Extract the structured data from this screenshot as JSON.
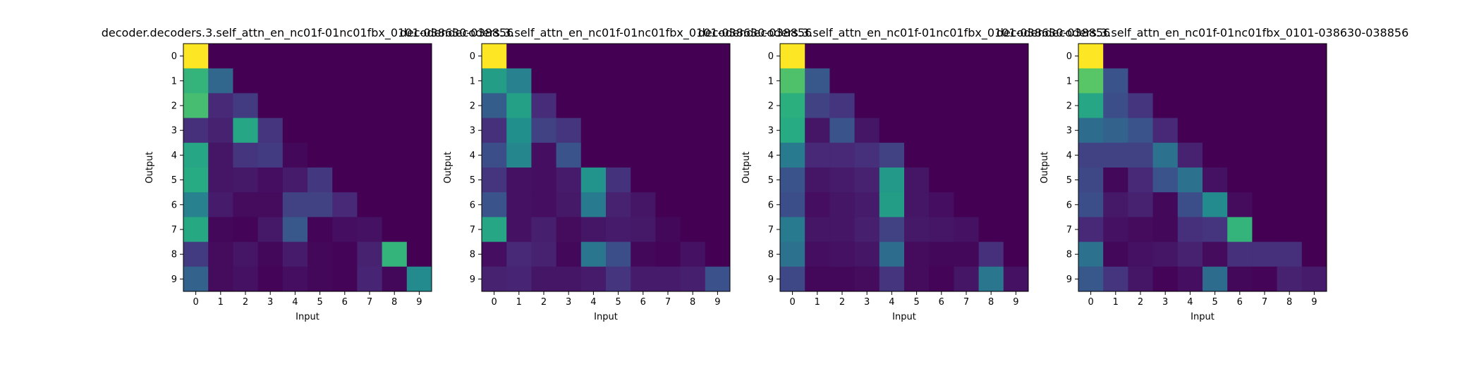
{
  "chart_data": [
    {
      "type": "heatmap",
      "title": "decoder.decoders.3.self_attn_en_nc01f-01nc01fbx_0101-038630-038856",
      "xlabel": "Input",
      "ylabel": "Output",
      "x_ticks": [
        "0",
        "1",
        "2",
        "3",
        "4",
        "5",
        "6",
        "7",
        "8",
        "9"
      ],
      "y_ticks": [
        "0",
        "1",
        "2",
        "3",
        "4",
        "5",
        "6",
        "7",
        "8",
        "9"
      ],
      "colormap": "viridis",
      "values": [
        [
          1.0,
          0,
          0,
          0,
          0,
          0,
          0,
          0,
          0,
          0
        ],
        [
          0.66,
          0.34,
          0,
          0,
          0,
          0,
          0,
          0,
          0,
          0
        ],
        [
          0.7,
          0.12,
          0.18,
          0,
          0,
          0,
          0,
          0,
          0,
          0
        ],
        [
          0.14,
          0.1,
          0.6,
          0.16,
          0,
          0,
          0,
          0,
          0,
          0
        ],
        [
          0.6,
          0.06,
          0.16,
          0.18,
          0.02,
          0,
          0,
          0,
          0,
          0
        ],
        [
          0.62,
          0.06,
          0.07,
          0.04,
          0.08,
          0.17,
          0,
          0,
          0,
          0
        ],
        [
          0.44,
          0.08,
          0.03,
          0.03,
          0.2,
          0.2,
          0.12,
          0,
          0,
          0
        ],
        [
          0.61,
          0.02,
          0.01,
          0.07,
          0.28,
          0.01,
          0.04,
          0.05,
          0,
          0
        ],
        [
          0.18,
          0.03,
          0.06,
          0.02,
          0.08,
          0.02,
          0.01,
          0.1,
          0.66,
          0
        ],
        [
          0.32,
          0.03,
          0.05,
          0.01,
          0.04,
          0.02,
          0.01,
          0.11,
          0.02,
          0.48
        ]
      ]
    },
    {
      "type": "heatmap",
      "title": "decoder.decoders.3.self_attn_en_nc01f-01nc01fbx_0101-038630-038856",
      "xlabel": "Input",
      "ylabel": "Output",
      "x_ticks": [
        "0",
        "1",
        "2",
        "3",
        "4",
        "5",
        "6",
        "7",
        "8",
        "9"
      ],
      "y_ticks": [
        "0",
        "1",
        "2",
        "3",
        "4",
        "5",
        "6",
        "7",
        "8",
        "9"
      ],
      "colormap": "viridis",
      "values": [
        [
          1.0,
          0,
          0,
          0,
          0,
          0,
          0,
          0,
          0,
          0
        ],
        [
          0.56,
          0.44,
          0,
          0,
          0,
          0,
          0,
          0,
          0,
          0
        ],
        [
          0.3,
          0.57,
          0.13,
          0,
          0,
          0,
          0,
          0,
          0,
          0
        ],
        [
          0.14,
          0.5,
          0.2,
          0.16,
          0,
          0,
          0,
          0,
          0,
          0
        ],
        [
          0.24,
          0.46,
          0.04,
          0.26,
          0,
          0,
          0,
          0,
          0,
          0
        ],
        [
          0.16,
          0.05,
          0.04,
          0.08,
          0.52,
          0.15,
          0,
          0,
          0,
          0
        ],
        [
          0.26,
          0.05,
          0.04,
          0.07,
          0.42,
          0.1,
          0.06,
          0,
          0,
          0
        ],
        [
          0.6,
          0.05,
          0.09,
          0.03,
          0.06,
          0.08,
          0.07,
          0.02,
          0,
          0
        ],
        [
          0.04,
          0.12,
          0.1,
          0.02,
          0.4,
          0.24,
          0.02,
          0.01,
          0.05,
          0
        ],
        [
          0.1,
          0.11,
          0.06,
          0.06,
          0.08,
          0.16,
          0.08,
          0.08,
          0.09,
          0.25
        ]
      ]
    },
    {
      "type": "heatmap",
      "title": "decoder.decoders.3.self_attn_en_nc01f-01nc01fbx_0101-038630-038856",
      "xlabel": "Input",
      "ylabel": "Output",
      "x_ticks": [
        "0",
        "1",
        "2",
        "3",
        "4",
        "5",
        "6",
        "7",
        "8",
        "9"
      ],
      "y_ticks": [
        "0",
        "1",
        "2",
        "3",
        "4",
        "5",
        "6",
        "7",
        "8",
        "9"
      ],
      "colormap": "viridis",
      "values": [
        [
          1.0,
          0,
          0,
          0,
          0,
          0,
          0,
          0,
          0,
          0
        ],
        [
          0.72,
          0.28,
          0,
          0,
          0,
          0,
          0,
          0,
          0,
          0
        ],
        [
          0.64,
          0.2,
          0.16,
          0,
          0,
          0,
          0,
          0,
          0,
          0
        ],
        [
          0.62,
          0.06,
          0.26,
          0.06,
          0,
          0,
          0,
          0,
          0,
          0
        ],
        [
          0.42,
          0.12,
          0.12,
          0.14,
          0.2,
          0,
          0,
          0,
          0,
          0
        ],
        [
          0.26,
          0.06,
          0.08,
          0.1,
          0.54,
          0.06,
          0,
          0,
          0,
          0
        ],
        [
          0.24,
          0.04,
          0.06,
          0.08,
          0.56,
          0.06,
          0.04,
          0,
          0,
          0
        ],
        [
          0.42,
          0.06,
          0.06,
          0.09,
          0.2,
          0.07,
          0.06,
          0.05,
          0,
          0
        ],
        [
          0.38,
          0.04,
          0.05,
          0.06,
          0.36,
          0.03,
          0.02,
          0.02,
          0.14,
          0
        ],
        [
          0.22,
          0.02,
          0.02,
          0.03,
          0.16,
          0.03,
          0.01,
          0.06,
          0.4,
          0.05
        ]
      ]
    },
    {
      "type": "heatmap",
      "title": "decoder.decoders.3.self_attn_en_nc01f-01nc01fbx_0101-038630-038856",
      "xlabel": "Input",
      "ylabel": "Output",
      "x_ticks": [
        "0",
        "1",
        "2",
        "3",
        "4",
        "5",
        "6",
        "7",
        "8",
        "9"
      ],
      "y_ticks": [
        "0",
        "1",
        "2",
        "3",
        "4",
        "5",
        "6",
        "7",
        "8",
        "9"
      ],
      "colormap": "viridis",
      "values": [
        [
          1.0,
          0,
          0,
          0,
          0,
          0,
          0,
          0,
          0,
          0
        ],
        [
          0.74,
          0.26,
          0,
          0,
          0,
          0,
          0,
          0,
          0,
          0
        ],
        [
          0.6,
          0.24,
          0.16,
          0,
          0,
          0,
          0,
          0,
          0,
          0
        ],
        [
          0.36,
          0.32,
          0.26,
          0.12,
          0,
          0,
          0,
          0,
          0,
          0
        ],
        [
          0.2,
          0.2,
          0.2,
          0.38,
          0.1,
          0,
          0,
          0,
          0,
          0
        ],
        [
          0.22,
          0.02,
          0.12,
          0.26,
          0.38,
          0.05,
          0,
          0,
          0,
          0
        ],
        [
          0.24,
          0.07,
          0.1,
          0.02,
          0.24,
          0.48,
          0.03,
          0,
          0,
          0
        ],
        [
          0.12,
          0.05,
          0.03,
          0.02,
          0.14,
          0.16,
          0.66,
          0,
          0,
          0
        ],
        [
          0.38,
          0.02,
          0.05,
          0.06,
          0.1,
          0.03,
          0.14,
          0.14,
          0.14,
          0
        ],
        [
          0.28,
          0.16,
          0.06,
          0.01,
          0.04,
          0.36,
          0.02,
          0.01,
          0.1,
          0.08
        ]
      ]
    }
  ]
}
